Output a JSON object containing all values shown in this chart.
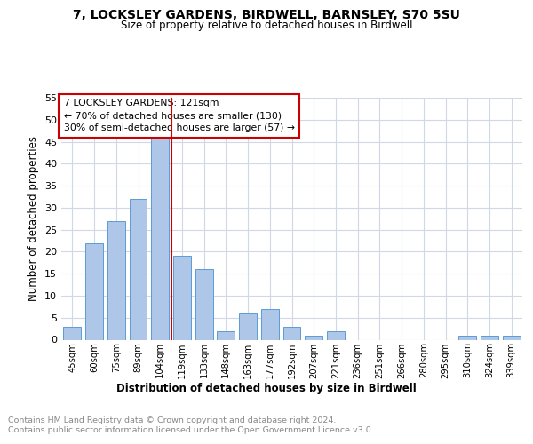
{
  "title": "7, LOCKSLEY GARDENS, BIRDWELL, BARNSLEY, S70 5SU",
  "subtitle": "Size of property relative to detached houses in Birdwell",
  "xlabel": "Distribution of detached houses by size in Birdwell",
  "ylabel": "Number of detached properties",
  "categories": [
    "45sqm",
    "60sqm",
    "75sqm",
    "89sqm",
    "104sqm",
    "119sqm",
    "133sqm",
    "148sqm",
    "163sqm",
    "177sqm",
    "192sqm",
    "207sqm",
    "221sqm",
    "236sqm",
    "251sqm",
    "266sqm",
    "280sqm",
    "295sqm",
    "310sqm",
    "324sqm",
    "339sqm"
  ],
  "values": [
    3,
    22,
    27,
    32,
    46,
    19,
    16,
    2,
    6,
    7,
    3,
    1,
    2,
    0,
    0,
    0,
    0,
    0,
    1,
    1,
    1
  ],
  "bar_color": "#aec6e8",
  "bar_edgecolor": "#5b9bd5",
  "vline_color": "#cc0000",
  "annotation_text": "7 LOCKSLEY GARDENS: 121sqm\n← 70% of detached houses are smaller (130)\n30% of semi-detached houses are larger (57) →",
  "annotation_box_edgecolor": "#cc0000",
  "ylim": [
    0,
    55
  ],
  "yticks": [
    0,
    5,
    10,
    15,
    20,
    25,
    30,
    35,
    40,
    45,
    50,
    55
  ],
  "footer_line1": "Contains HM Land Registry data © Crown copyright and database right 2024.",
  "footer_line2": "Contains public sector information licensed under the Open Government Licence v3.0.",
  "background_color": "#ffffff",
  "grid_color": "#d0d8e8"
}
